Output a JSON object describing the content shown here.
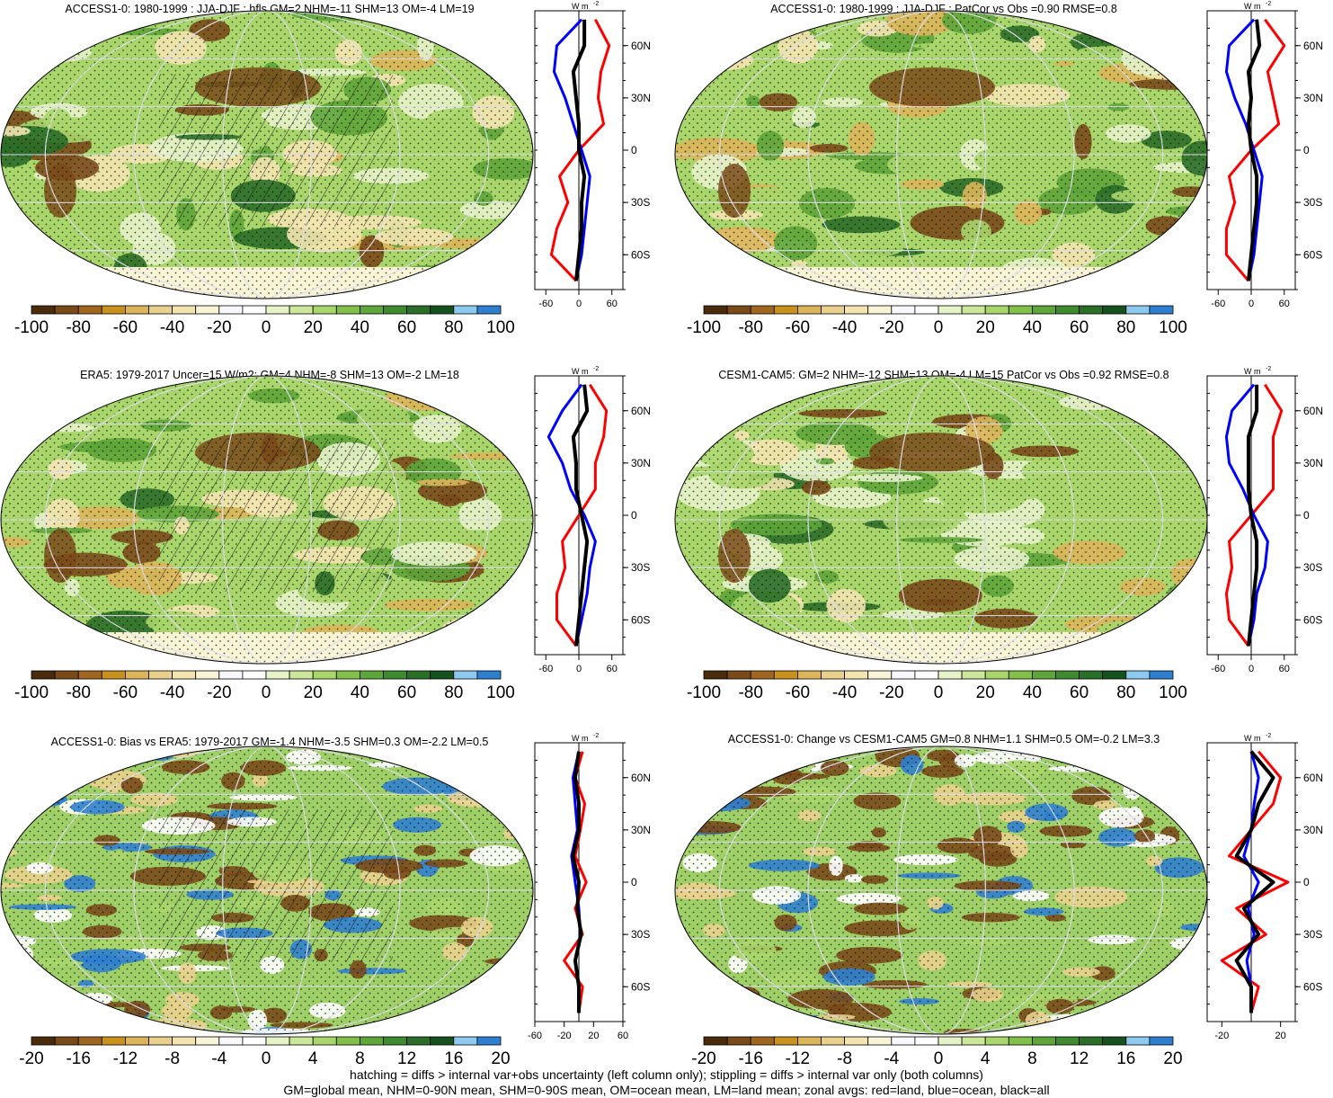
{
  "panels": [
    {
      "title": "ACCESS1-0: 1980-1999 : JJA-DJF : hfls GM=2 NHM=-11 SHM=13 OM=-4 LM=19",
      "colorbar_labels": [
        "-100",
        "-80",
        "-60",
        "-40",
        "-20",
        "0",
        "20",
        "40",
        "60",
        "80",
        "100"
      ],
      "zonal_ticks": [
        "-60",
        "0",
        "60"
      ]
    },
    {
      "title": "ACCESS1-0: 1980-1999 : JJA-DJF : PatCor vs Obs =0.90 RMSE=0.8",
      "colorbar_labels": [
        "-100",
        "-80",
        "-60",
        "-40",
        "-20",
        "0",
        "20",
        "40",
        "60",
        "80",
        "100"
      ],
      "zonal_ticks": [
        "-60",
        "0",
        "60"
      ]
    },
    {
      "title": "ERA5: 1979-2017 Uncer=15 W/m2: GM=4 NHM=-8 SHM=13 OM=-2 LM=18",
      "colorbar_labels": [
        "-100",
        "-80",
        "-60",
        "-40",
        "-20",
        "0",
        "20",
        "40",
        "60",
        "80",
        "100"
      ],
      "zonal_ticks": [
        "-60",
        "0",
        "60"
      ]
    },
    {
      "title": "CESM1-CAM5: GM=2 NHM=-12 SHM=13 OM=-4 LM=15 PatCor vs Obs =0.92 RMSE=0.8",
      "colorbar_labels": [
        "-100",
        "-80",
        "-60",
        "-40",
        "-20",
        "0",
        "20",
        "40",
        "60",
        "80",
        "100"
      ],
      "zonal_ticks": [
        "-60",
        "0",
        "60"
      ]
    },
    {
      "title": "ACCESS1-0: Bias vs ERA5: 1979-2017 GM=-1.4 NHM=-3.5 SHM=0.3 OM=-2.2 LM=0.5",
      "colorbar_labels": [
        "-20",
        "-16",
        "-12",
        "-8",
        "-4",
        "0",
        "4",
        "8",
        "12",
        "16",
        "20"
      ],
      "zonal_ticks": [
        "-60",
        "-20",
        "20",
        "60"
      ]
    },
    {
      "title": "ACCESS1-0: Change vs CESM1-CAM5 GM=0.8 NHM=1.1 SHM=0.5 OM=-0.2 LM=3.3",
      "colorbar_labels": [
        "-20",
        "-16",
        "-12",
        "-8",
        "-4",
        "0",
        "4",
        "8",
        "12",
        "16",
        "20"
      ],
      "zonal_ticks": [
        "-20",
        "20"
      ]
    }
  ],
  "lat_labels": [
    "60N",
    "30N",
    "0",
    "30S",
    "60S"
  ],
  "zonal_unit": "W m",
  "zonal_unit_sup": "-2",
  "colors": {
    "land": "#ff0000",
    "ocean": "#0000ff",
    "all": "#000000",
    "palette": [
      "#4a2b0c",
      "#7a4a19",
      "#a0651e",
      "#c8921c",
      "#dcb55a",
      "#e9d08c",
      "#f3e4b0",
      "#faf4d6",
      "#f8f8fc",
      "#ffffff",
      "#e6f2c8",
      "#cce69a",
      "#a9d66a",
      "#82c04a",
      "#5ea53a",
      "#3f8a2e",
      "#2a6e28",
      "#16521e",
      "#8ecaf0",
      "#2f7fd0"
    ]
  },
  "footer": [
    "hatching = diffs > internal var+obs uncertainty (left column only); stippling = diffs > internal var only (both columns)",
    "GM=global mean, NHM=0-90N mean, SHM=0-90S mean, OM=ocean mean, LM=land mean; zonal avgs: red=land, blue=ocean, black=all"
  ],
  "chart_data": [
    {
      "type": "heatmap",
      "title": "ACCESS1-0: 1980-1999 : JJA-DJF : hfls GM=2 NHM=-11 SHM=13 OM=-4 LM=19",
      "colorbar_range": [
        -100,
        100
      ],
      "zonal_mean": {
        "type": "line",
        "xlim": [
          -80,
          80
        ],
        "lat": [
          75,
          60,
          45,
          30,
          15,
          0,
          -15,
          -30,
          -45,
          -60,
          -75
        ],
        "series": [
          {
            "name": "red=land",
            "values": [
              30,
              55,
              40,
              35,
              45,
              0,
              -35,
              -20,
              -40,
              -50,
              -5
            ]
          },
          {
            "name": "blue=ocean",
            "values": [
              5,
              -40,
              -45,
              -25,
              -10,
              5,
              20,
              15,
              10,
              5,
              -5
            ]
          },
          {
            "name": "black=all",
            "values": [
              10,
              10,
              -10,
              -5,
              0,
              0,
              10,
              5,
              5,
              0,
              -5
            ]
          }
        ]
      }
    },
    {
      "type": "heatmap",
      "title": "ACCESS1-0: 1980-1999 : JJA-DJF : PatCor vs Obs =0.90 RMSE=0.8",
      "colorbar_range": [
        -100,
        100
      ],
      "zonal_mean": {
        "type": "line",
        "xlim": [
          -80,
          80
        ],
        "lat": [
          75,
          60,
          45,
          30,
          15,
          0,
          -15,
          -30,
          -45,
          -60,
          -75
        ],
        "series": [
          {
            "name": "red=land",
            "values": [
              25,
              60,
              30,
              40,
              50,
              0,
              -40,
              -30,
              -45,
              -45,
              -5
            ]
          },
          {
            "name": "blue=ocean",
            "values": [
              5,
              -40,
              -45,
              -30,
              -10,
              5,
              20,
              15,
              10,
              5,
              -5
            ]
          },
          {
            "name": "black=all",
            "values": [
              10,
              15,
              -5,
              0,
              -5,
              0,
              10,
              10,
              5,
              0,
              -5
            ]
          }
        ]
      }
    },
    {
      "type": "heatmap",
      "title": "ERA5: 1979-2017 Uncer=15 W/m2: GM=4 NHM=-8 SHM=13 OM=-2 LM=18",
      "colorbar_range": [
        -100,
        100
      ],
      "zonal_mean": {
        "type": "line",
        "xlim": [
          -80,
          80
        ],
        "lat": [
          75,
          60,
          45,
          30,
          15,
          0,
          -15,
          -30,
          -45,
          -60,
          -75
        ],
        "series": [
          {
            "name": "red=land",
            "values": [
              20,
              50,
              45,
              30,
              30,
              0,
              -30,
              -25,
              -40,
              -40,
              -5
            ]
          },
          {
            "name": "blue=ocean",
            "values": [
              5,
              -30,
              -55,
              -30,
              -15,
              10,
              30,
              20,
              15,
              5,
              -5
            ]
          },
          {
            "name": "black=all",
            "values": [
              10,
              15,
              -10,
              -5,
              -5,
              5,
              15,
              10,
              5,
              0,
              -5
            ]
          }
        ]
      }
    },
    {
      "type": "heatmap",
      "title": "CESM1-CAM5: GM=2 NHM=-12 SHM=13 OM=-4 LM=15 PatCor vs Obs =0.92 RMSE=0.8",
      "colorbar_range": [
        -100,
        100
      ],
      "zonal_mean": {
        "type": "line",
        "xlim": [
          -80,
          80
        ],
        "lat": [
          75,
          60,
          45,
          30,
          15,
          0,
          -15,
          -30,
          -45,
          -60,
          -75
        ],
        "series": [
          {
            "name": "red=land",
            "values": [
              25,
              55,
              40,
              40,
              40,
              0,
              -40,
              -35,
              -45,
              -40,
              -5
            ]
          },
          {
            "name": "blue=ocean",
            "values": [
              5,
              -35,
              -45,
              -40,
              -15,
              5,
              30,
              25,
              10,
              5,
              -5
            ]
          },
          {
            "name": "black=all",
            "values": [
              10,
              10,
              -5,
              -5,
              -5,
              0,
              10,
              10,
              5,
              0,
              -5
            ]
          }
        ]
      }
    },
    {
      "type": "heatmap",
      "title": "ACCESS1-0: Bias vs ERA5: 1979-2017 GM=-1.4 NHM=-3.5 SHM=0.3 OM=-2.2 LM=0.5",
      "colorbar_range": [
        -20,
        20
      ],
      "zonal_mean": {
        "type": "line",
        "xlim": [
          -60,
          60
        ],
        "lat": [
          75,
          60,
          45,
          30,
          15,
          0,
          -15,
          -30,
          -45,
          -60,
          -75
        ],
        "series": [
          {
            "name": "red=land",
            "values": [
              5,
              -5,
              8,
              2,
              -5,
              10,
              -5,
              5,
              -20,
              5,
              0
            ]
          },
          {
            "name": "blue=ocean",
            "values": [
              0,
              -8,
              -5,
              -2,
              -10,
              -5,
              0,
              2,
              -5,
              0,
              0
            ]
          },
          {
            "name": "black=all",
            "values": [
              0,
              -5,
              0,
              0,
              -8,
              0,
              -2,
              3,
              -5,
              0,
              0
            ]
          }
        ]
      }
    },
    {
      "type": "heatmap",
      "title": "ACCESS1-0: Change vs CESM1-CAM5 GM=0.8 NHM=1.1 SHM=0.5 OM=-0.2 LM=3.3",
      "colorbar_range": [
        -20,
        20
      ],
      "zonal_mean": {
        "type": "line",
        "xlim": [
          -30,
          30
        ],
        "lat": [
          75,
          60,
          45,
          30,
          15,
          0,
          -15,
          -30,
          -45,
          -60,
          -75
        ],
        "series": [
          {
            "name": "red=land",
            "values": [
              5,
              20,
              15,
              0,
              -15,
              25,
              -10,
              10,
              -20,
              5,
              0
            ]
          },
          {
            "name": "blue=ocean",
            "values": [
              0,
              5,
              2,
              0,
              -5,
              5,
              -2,
              2,
              -3,
              0,
              0
            ]
          },
          {
            "name": "black=all",
            "values": [
              0,
              15,
              5,
              0,
              -10,
              15,
              -5,
              5,
              -10,
              0,
              0
            ]
          }
        ]
      }
    }
  ]
}
